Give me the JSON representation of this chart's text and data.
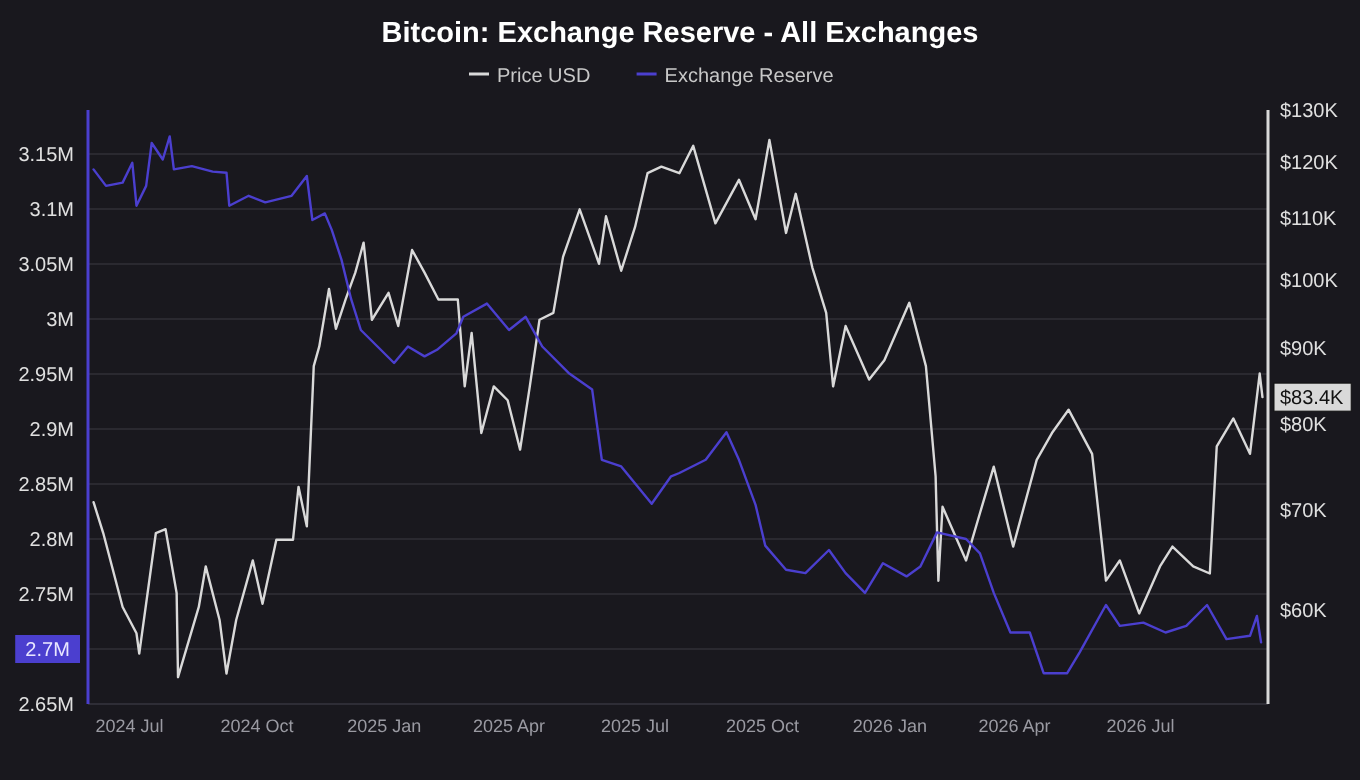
{
  "chart_data": {
    "type": "line",
    "title": "Bitcoin: Exchange Reserve - All Exchanges",
    "legend": "top",
    "grid": "y",
    "log": "y2",
    "xlim": [
      "2024-06-01",
      "2026-10-01"
    ],
    "xticks": [
      {
        "value": "2024-07-01",
        "label": "2024 Jul"
      },
      {
        "value": "2024-10-01",
        "label": "2024 Oct"
      },
      {
        "value": "2025-01-01",
        "label": "2025 Jan"
      },
      {
        "value": "2025-04-01",
        "label": "2025 Apr"
      },
      {
        "value": "2025-07-01",
        "label": "2025 Jul"
      },
      {
        "value": "2025-10-01",
        "label": "2025 Oct"
      },
      {
        "value": "2026-01-01",
        "label": "2026 Jan"
      },
      {
        "value": "2026-04-01",
        "label": "2026 Apr"
      },
      {
        "value": "2026-07-01",
        "label": "2026 Jul"
      }
    ],
    "ylim": [
      2.65,
      3.19
    ],
    "yticks": [
      {
        "value": 2.65,
        "label": "2.65M"
      },
      {
        "value": 2.7,
        "label": "2.7M"
      },
      {
        "value": 2.75,
        "label": "2.75M"
      },
      {
        "value": 2.8,
        "label": "2.8M"
      },
      {
        "value": 2.85,
        "label": "2.85M"
      },
      {
        "value": 2.9,
        "label": "2.9M"
      },
      {
        "value": 2.95,
        "label": "2.95M"
      },
      {
        "value": 3,
        "label": "3M"
      },
      {
        "value": 3.05,
        "label": "3.05M"
      },
      {
        "value": 3.1,
        "label": "3.1M"
      },
      {
        "value": 3.15,
        "label": "3.15M"
      }
    ],
    "y2lim": [
      51900,
      130000
    ],
    "y2ticks": [
      {
        "value": 60000,
        "label": "$60K"
      },
      {
        "value": 70000,
        "label": "$70K"
      },
      {
        "value": 80000,
        "label": "$80K"
      },
      {
        "value": 83400,
        "label": "$83.4K"
      },
      {
        "value": 90000,
        "label": "$90K"
      },
      {
        "value": 100000,
        "label": "$100K"
      },
      {
        "value": 110000,
        "label": "$110K"
      },
      {
        "value": 120000,
        "label": "$120K"
      },
      {
        "value": 130000,
        "label": "$130K"
      }
    ],
    "series": [
      {
        "name": "Price USD",
        "color": "#d9d9d9",
        "axis": "y2",
        "x": [
          "2024-06-05",
          "2024-06-12",
          "2024-06-26",
          "2024-07-06",
          "2024-07-08",
          "2024-07-20",
          "2024-07-27",
          "2024-08-04",
          "2024-08-05",
          "2024-08-20",
          "2024-08-25",
          "2024-09-04",
          "2024-09-09",
          "2024-09-16",
          "2024-09-28",
          "2024-10-05",
          "2024-10-15",
          "2024-10-27",
          "2024-10-31",
          "2024-11-06",
          "2024-11-11",
          "2024-11-15",
          "2024-11-22",
          "2024-11-27",
          "2024-12-04",
          "2024-12-11",
          "2024-12-17",
          "2024-12-23",
          "2025-01-04",
          "2025-01-11",
          "2025-01-21",
          "2025-01-30",
          "2025-02-09",
          "2025-02-23",
          "2025-02-28",
          "2025-03-05",
          "2025-03-12",
          "2025-03-21",
          "2025-03-31",
          "2025-04-09",
          "2025-04-16",
          "2025-04-23",
          "2025-05-03",
          "2025-05-10",
          "2025-05-22",
          "2025-06-05",
          "2025-06-10",
          "2025-06-21",
          "2025-07-01",
          "2025-07-10",
          "2025-07-20",
          "2025-08-02",
          "2025-08-12",
          "2025-08-28",
          "2025-09-14",
          "2025-09-26",
          "2025-10-06",
          "2025-10-18",
          "2025-10-25",
          "2025-11-06",
          "2025-11-16",
          "2025-11-21",
          "2025-11-30",
          "2025-12-17",
          "2025-12-28",
          "2026-01-15",
          "2026-01-27",
          "2026-02-03",
          "2026-02-05",
          "2026-02-08",
          "2026-02-25",
          "2026-03-07",
          "2026-03-17",
          "2026-03-31",
          "2026-04-17",
          "2026-04-28",
          "2026-05-10",
          "2026-05-27",
          "2026-06-06",
          "2026-06-16",
          "2026-06-30",
          "2026-07-15",
          "2026-07-24",
          "2026-08-08",
          "2026-08-20",
          "2026-08-25",
          "2026-09-06",
          "2026-09-18",
          "2026-09-25",
          "2026-09-27"
        ],
        "values": [
          70900,
          67600,
          60300,
          57900,
          56100,
          67600,
          68000,
          61600,
          54100,
          60300,
          64200,
          59100,
          54400,
          59100,
          64800,
          60600,
          66900,
          66900,
          72600,
          68300,
          87500,
          90200,
          98600,
          92700,
          97000,
          101100,
          105900,
          94000,
          98000,
          93100,
          104700,
          101100,
          97000,
          97000,
          84800,
          92100,
          78900,
          84800,
          83000,
          76900,
          84800,
          94000,
          95000,
          103600,
          111500,
          102500,
          110300,
          101400,
          108500,
          117900,
          119100,
          117900,
          123000,
          109100,
          116700,
          109800,
          124100,
          107500,
          114200,
          101900,
          95000,
          84800,
          93100,
          85700,
          88300,
          96500,
          87500,
          73800,
          62800,
          70400,
          64800,
          69700,
          74900,
          66200,
          75700,
          78900,
          81800,
          76400,
          62800,
          64800,
          59700,
          64200,
          66200,
          64200,
          63500,
          77300,
          80700,
          76400,
          86500,
          83400
        ]
      },
      {
        "name": "Exchange Reserve",
        "color": "#4b3fcf",
        "x": [
          "2024-06-05",
          "2024-06-14",
          "2024-06-26",
          "2024-07-03",
          "2024-07-06",
          "2024-07-13",
          "2024-07-17",
          "2024-07-25",
          "2024-07-30",
          "2024-08-02",
          "2024-08-15",
          "2024-08-30",
          "2024-09-09",
          "2024-09-11",
          "2024-09-25",
          "2024-10-07",
          "2024-10-26",
          "2024-11-06",
          "2024-11-10",
          "2024-11-19",
          "2024-11-24",
          "2024-12-01",
          "2024-12-08",
          "2024-12-15",
          "2024-12-27",
          "2025-01-08",
          "2025-01-18",
          "2025-01-30",
          "2025-02-08",
          "2025-02-22",
          "2025-02-27",
          "2025-03-16",
          "2025-04-01",
          "2025-04-13",
          "2025-04-25",
          "2025-05-14",
          "2025-05-31",
          "2025-06-07",
          "2025-06-21",
          "2025-07-13",
          "2025-07-27",
          "2025-08-02",
          "2025-08-21",
          "2025-09-05",
          "2025-09-14",
          "2025-09-26",
          "2025-10-03",
          "2025-10-18",
          "2025-11-01",
          "2025-11-18",
          "2025-11-30",
          "2025-12-14",
          "2025-12-27",
          "2026-01-13",
          "2026-01-23",
          "2026-02-04",
          "2026-02-25",
          "2026-03-07",
          "2026-03-17",
          "2026-03-29",
          "2026-04-12",
          "2026-04-22",
          "2026-05-09",
          "2026-05-18",
          "2026-06-06",
          "2026-06-16",
          "2026-07-03",
          "2026-07-19",
          "2026-08-03",
          "2026-08-18",
          "2026-09-01",
          "2026-09-18",
          "2026-09-23",
          "2026-09-26"
        ],
        "values": [
          3.136,
          3.121,
          3.124,
          3.142,
          3.103,
          3.121,
          3.16,
          3.145,
          3.166,
          3.136,
          3.139,
          3.134,
          3.133,
          3.103,
          3.112,
          3.106,
          3.112,
          3.13,
          3.09,
          3.096,
          3.081,
          3.054,
          3.018,
          2.99,
          2.975,
          2.96,
          2.975,
          2.966,
          2.972,
          2.987,
          3.002,
          3.014,
          2.99,
          3.002,
          2.975,
          2.951,
          2.936,
          2.872,
          2.866,
          2.832,
          2.857,
          2.86,
          2.872,
          2.897,
          2.872,
          2.831,
          2.794,
          2.772,
          2.769,
          2.79,
          2.769,
          2.751,
          2.778,
          2.766,
          2.775,
          2.806,
          2.8,
          2.787,
          2.751,
          2.715,
          2.715,
          2.678,
          2.678,
          2.697,
          2.74,
          2.721,
          2.724,
          2.715,
          2.721,
          2.74,
          2.709,
          2.712,
          2.73,
          2.706
        ]
      }
    ]
  }
}
